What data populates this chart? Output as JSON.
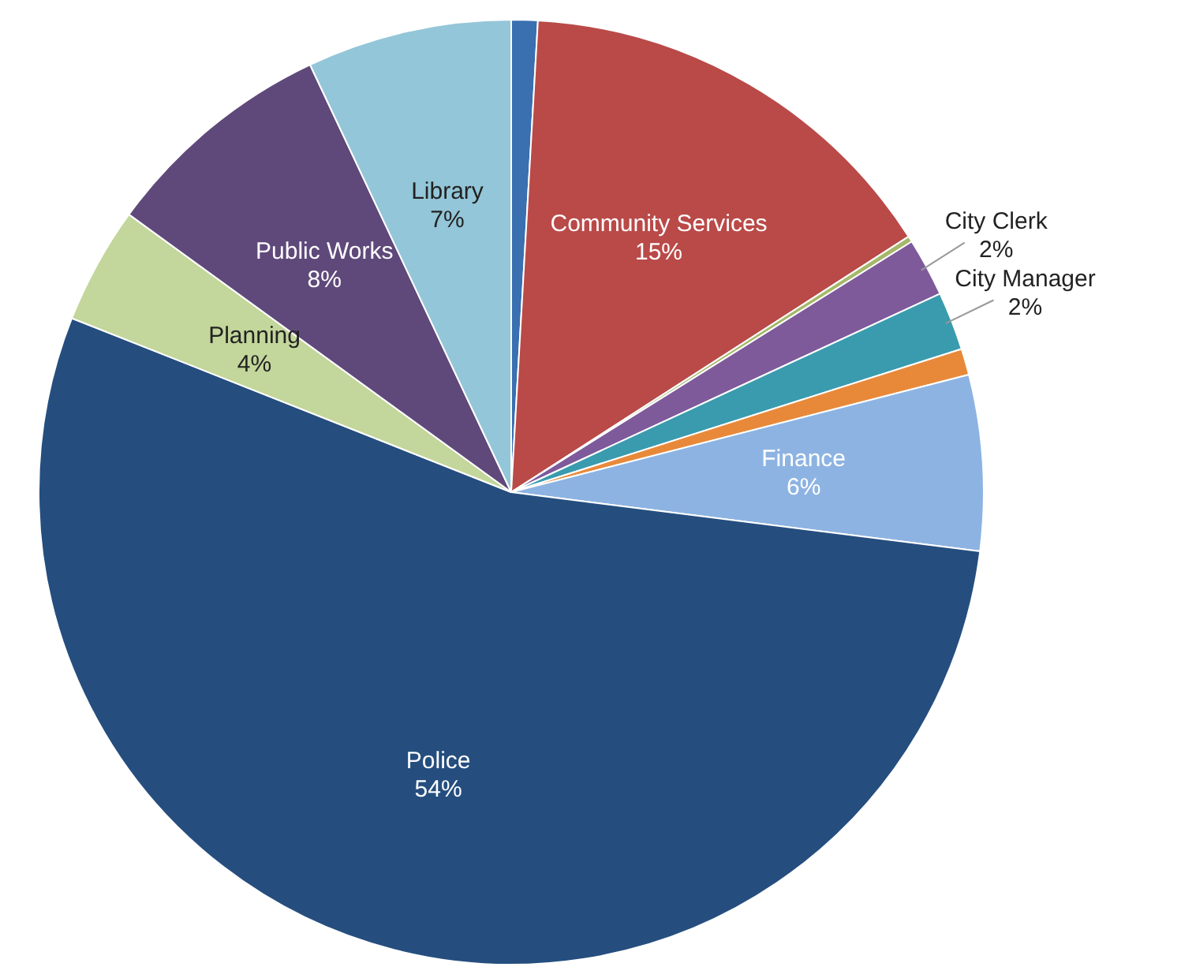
{
  "chart_data": {
    "type": "pie",
    "categories": [
      null,
      "Community Services",
      null,
      "City Clerk",
      "City Manager",
      null,
      "Finance",
      "Police",
      "Planning",
      "Public Works",
      "Library"
    ],
    "values": [
      0.9,
      15,
      0.2,
      2,
      2,
      0.9,
      6,
      54,
      4,
      8,
      7
    ],
    "value_labels": [
      null,
      "15%",
      null,
      "2%",
      "2%",
      null,
      "6%",
      "54%",
      "4%",
      "8%",
      "7%"
    ],
    "colors": [
      "#3a6fb0",
      "#b94a48",
      "#a5b86a",
      "#7e5a9b",
      "#3a9bae",
      "#e8893a",
      "#8db3e2",
      "#254e7f",
      "#c3d69b",
      "#5f497a",
      "#93c6d8"
    ],
    "legend": false
  }
}
